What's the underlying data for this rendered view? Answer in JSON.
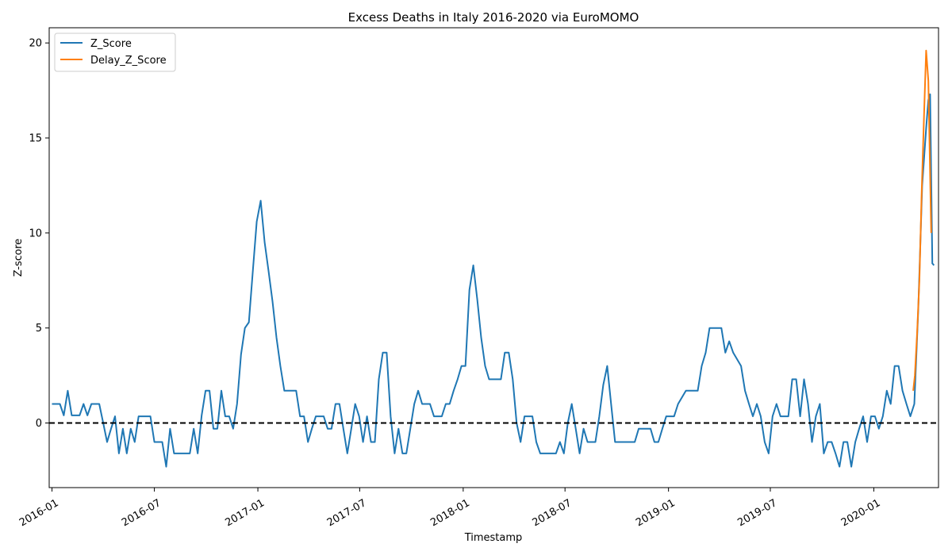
{
  "chart_data": {
    "type": "line",
    "title": "Excess Deaths in Italy 2016-2020 via EuroMOMO",
    "xlabel": "Timestamp",
    "ylabel": "Z-score",
    "xlim": [
      "2015-12-27",
      "2020-04-25"
    ],
    "ylim": [
      -3.4,
      20.8
    ],
    "x_ticks": [
      "2016-01",
      "2016-07",
      "2017-01",
      "2017-07",
      "2018-01",
      "2018-07",
      "2019-01",
      "2019-07",
      "2020-01"
    ],
    "y_ticks": [
      0,
      5,
      10,
      15,
      20
    ],
    "grid": false,
    "legend_position": "top-left",
    "reference_line": {
      "y": 0,
      "style": "dashed",
      "color": "#000000"
    },
    "series": [
      {
        "name": "Z_Score",
        "color": "#1f77b4",
        "points": [
          [
            "2016-01-01",
            1.0
          ],
          [
            "2016-01-15",
            1.0
          ],
          [
            "2016-01-22",
            0.4
          ],
          [
            "2016-01-29",
            1.7
          ],
          [
            "2016-02-05",
            0.4
          ],
          [
            "2016-02-19",
            0.4
          ],
          [
            "2016-02-26",
            1.0
          ],
          [
            "2016-03-04",
            0.4
          ],
          [
            "2016-03-11",
            1.0
          ],
          [
            "2016-03-25",
            1.0
          ],
          [
            "2016-04-01",
            0.0
          ],
          [
            "2016-04-08",
            -1.0
          ],
          [
            "2016-04-15",
            -0.3
          ],
          [
            "2016-04-22",
            0.35
          ],
          [
            "2016-04-29",
            -1.6
          ],
          [
            "2016-05-06",
            -0.3
          ],
          [
            "2016-05-13",
            -1.6
          ],
          [
            "2016-05-20",
            -0.3
          ],
          [
            "2016-05-27",
            -1.0
          ],
          [
            "2016-06-03",
            0.35
          ],
          [
            "2016-06-17",
            0.35
          ],
          [
            "2016-06-24",
            0.35
          ],
          [
            "2016-07-01",
            -1.0
          ],
          [
            "2016-07-15",
            -1.0
          ],
          [
            "2016-07-22",
            -2.3
          ],
          [
            "2016-07-29",
            -0.3
          ],
          [
            "2016-08-05",
            -1.6
          ],
          [
            "2016-08-26",
            -1.6
          ],
          [
            "2016-09-02",
            -1.6
          ],
          [
            "2016-09-09",
            -0.3
          ],
          [
            "2016-09-16",
            -1.6
          ],
          [
            "2016-09-23",
            0.4
          ],
          [
            "2016-09-30",
            1.7
          ],
          [
            "2016-10-07",
            1.7
          ],
          [
            "2016-10-14",
            -0.3
          ],
          [
            "2016-10-21",
            -0.3
          ],
          [
            "2016-10-28",
            1.7
          ],
          [
            "2016-11-04",
            0.35
          ],
          [
            "2016-11-11",
            0.35
          ],
          [
            "2016-11-18",
            -0.3
          ],
          [
            "2016-11-25",
            1.0
          ],
          [
            "2016-12-02",
            3.6
          ],
          [
            "2016-12-09",
            5.0
          ],
          [
            "2016-12-16",
            5.3
          ],
          [
            "2016-12-23",
            8.0
          ],
          [
            "2016-12-30",
            10.6
          ],
          [
            "2017-01-06",
            11.7
          ],
          [
            "2017-01-13",
            9.5
          ],
          [
            "2017-01-20",
            8.0
          ],
          [
            "2017-01-27",
            6.4
          ],
          [
            "2017-02-03",
            4.5
          ],
          [
            "2017-02-10",
            3.0
          ],
          [
            "2017-02-17",
            1.7
          ],
          [
            "2017-03-10",
            1.7
          ],
          [
            "2017-03-17",
            0.35
          ],
          [
            "2017-03-24",
            0.35
          ],
          [
            "2017-03-31",
            -1.0
          ],
          [
            "2017-04-07",
            -0.3
          ],
          [
            "2017-04-14",
            0.35
          ],
          [
            "2017-04-28",
            0.35
          ],
          [
            "2017-05-05",
            -0.3
          ],
          [
            "2017-05-12",
            -0.3
          ],
          [
            "2017-05-19",
            1.0
          ],
          [
            "2017-05-26",
            1.0
          ],
          [
            "2017-06-02",
            -0.3
          ],
          [
            "2017-06-09",
            -1.6
          ],
          [
            "2017-06-16",
            -0.3
          ],
          [
            "2017-06-23",
            1.0
          ],
          [
            "2017-06-30",
            0.35
          ],
          [
            "2017-07-07",
            -1.0
          ],
          [
            "2017-07-14",
            0.35
          ],
          [
            "2017-07-21",
            -1.0
          ],
          [
            "2017-07-28",
            -1.0
          ],
          [
            "2017-08-04",
            2.3
          ],
          [
            "2017-08-11",
            3.7
          ],
          [
            "2017-08-18",
            3.7
          ],
          [
            "2017-08-25",
            0.35
          ],
          [
            "2017-09-01",
            -1.6
          ],
          [
            "2017-09-08",
            -0.3
          ],
          [
            "2017-09-15",
            -1.6
          ],
          [
            "2017-09-22",
            -1.6
          ],
          [
            "2017-09-29",
            -0.3
          ],
          [
            "2017-10-06",
            1.0
          ],
          [
            "2017-10-13",
            1.7
          ],
          [
            "2017-10-20",
            1.0
          ],
          [
            "2017-11-03",
            1.0
          ],
          [
            "2017-11-10",
            0.35
          ],
          [
            "2017-11-24",
            0.35
          ],
          [
            "2017-12-01",
            1.0
          ],
          [
            "2017-12-08",
            1.0
          ],
          [
            "2017-12-15",
            1.7
          ],
          [
            "2017-12-22",
            2.3
          ],
          [
            "2017-12-29",
            3.0
          ],
          [
            "2018-01-05",
            3.0
          ],
          [
            "2018-01-12",
            7.0
          ],
          [
            "2018-01-19",
            8.3
          ],
          [
            "2018-01-26",
            6.5
          ],
          [
            "2018-02-02",
            4.5
          ],
          [
            "2018-02-09",
            3.0
          ],
          [
            "2018-02-16",
            2.3
          ],
          [
            "2018-03-09",
            2.3
          ],
          [
            "2018-03-16",
            3.7
          ],
          [
            "2018-03-23",
            3.7
          ],
          [
            "2018-03-30",
            2.3
          ],
          [
            "2018-04-06",
            0.0
          ],
          [
            "2018-04-13",
            -1.0
          ],
          [
            "2018-04-20",
            0.35
          ],
          [
            "2018-05-04",
            0.35
          ],
          [
            "2018-05-11",
            -1.0
          ],
          [
            "2018-05-18",
            -1.6
          ],
          [
            "2018-05-25",
            -1.6
          ],
          [
            "2018-06-15",
            -1.6
          ],
          [
            "2018-06-22",
            -1.0
          ],
          [
            "2018-06-29",
            -1.6
          ],
          [
            "2018-07-06",
            0.0
          ],
          [
            "2018-07-13",
            1.0
          ],
          [
            "2018-07-20",
            -0.3
          ],
          [
            "2018-07-27",
            -1.6
          ],
          [
            "2018-08-03",
            -0.3
          ],
          [
            "2018-08-10",
            -1.0
          ],
          [
            "2018-08-24",
            -1.0
          ],
          [
            "2018-08-31",
            0.35
          ],
          [
            "2018-09-07",
            2.0
          ],
          [
            "2018-09-14",
            3.0
          ],
          [
            "2018-09-21",
            1.0
          ],
          [
            "2018-09-28",
            -1.0
          ],
          [
            "2018-11-02",
            -1.0
          ],
          [
            "2018-11-09",
            -0.3
          ],
          [
            "2018-11-30",
            -0.3
          ],
          [
            "2018-12-07",
            -1.0
          ],
          [
            "2018-12-14",
            -1.0
          ],
          [
            "2018-12-21",
            -0.3
          ],
          [
            "2018-12-28",
            0.35
          ],
          [
            "2019-01-11",
            0.35
          ],
          [
            "2019-01-18",
            1.0
          ],
          [
            "2019-02-01",
            1.7
          ],
          [
            "2019-02-22",
            1.7
          ],
          [
            "2019-03-01",
            3.0
          ],
          [
            "2019-03-08",
            3.7
          ],
          [
            "2019-03-15",
            5.0
          ],
          [
            "2019-04-05",
            5.0
          ],
          [
            "2019-04-12",
            3.7
          ],
          [
            "2019-04-19",
            4.3
          ],
          [
            "2019-04-26",
            3.7
          ],
          [
            "2019-05-10",
            3.0
          ],
          [
            "2019-05-17",
            1.7
          ],
          [
            "2019-05-24",
            1.0
          ],
          [
            "2019-05-31",
            0.35
          ],
          [
            "2019-06-07",
            1.0
          ],
          [
            "2019-06-14",
            0.35
          ],
          [
            "2019-06-21",
            -1.0
          ],
          [
            "2019-06-28",
            -1.6
          ],
          [
            "2019-07-05",
            0.35
          ],
          [
            "2019-07-12",
            1.0
          ],
          [
            "2019-07-19",
            0.35
          ],
          [
            "2019-08-02",
            0.35
          ],
          [
            "2019-08-09",
            2.3
          ],
          [
            "2019-08-16",
            2.3
          ],
          [
            "2019-08-23",
            0.35
          ],
          [
            "2019-08-30",
            2.3
          ],
          [
            "2019-09-06",
            1.0
          ],
          [
            "2019-09-13",
            -1.0
          ],
          [
            "2019-09-20",
            0.35
          ],
          [
            "2019-09-27",
            1.0
          ],
          [
            "2019-10-04",
            -1.6
          ],
          [
            "2019-10-11",
            -1.0
          ],
          [
            "2019-10-18",
            -1.0
          ],
          [
            "2019-10-25",
            -1.6
          ],
          [
            "2019-11-01",
            -2.3
          ],
          [
            "2019-11-08",
            -1.0
          ],
          [
            "2019-11-15",
            -1.0
          ],
          [
            "2019-11-22",
            -2.3
          ],
          [
            "2019-11-29",
            -1.0
          ],
          [
            "2019-12-06",
            -0.3
          ],
          [
            "2019-12-13",
            0.35
          ],
          [
            "2019-12-20",
            -1.0
          ],
          [
            "2019-12-27",
            0.35
          ],
          [
            "2020-01-03",
            0.35
          ],
          [
            "2020-01-10",
            -0.3
          ],
          [
            "2020-01-17",
            0.35
          ],
          [
            "2020-01-24",
            1.7
          ],
          [
            "2020-01-31",
            1.0
          ],
          [
            "2020-02-07",
            3.0
          ],
          [
            "2020-02-14",
            3.0
          ],
          [
            "2020-02-21",
            1.7
          ],
          [
            "2020-02-28",
            1.0
          ],
          [
            "2020-03-06",
            0.35
          ],
          [
            "2020-03-13",
            1.0
          ],
          [
            "2020-03-20",
            6.0
          ],
          [
            "2020-03-27",
            12.5
          ],
          [
            "2020-04-03",
            15.5
          ],
          [
            "2020-04-07",
            17.0
          ],
          [
            "2020-04-10",
            17.3
          ],
          [
            "2020-04-14",
            8.4
          ],
          [
            "2020-04-17",
            8.3
          ]
        ]
      },
      {
        "name": "Delay_Z_Score",
        "color": "#ff7f0e",
        "points": [
          [
            "2020-03-11",
            1.7
          ],
          [
            "2020-03-14",
            2.5
          ],
          [
            "2020-03-18",
            4.8
          ],
          [
            "2020-03-22",
            7.5
          ],
          [
            "2020-03-26",
            12.0
          ],
          [
            "2020-03-30",
            16.0
          ],
          [
            "2020-04-03",
            19.6
          ],
          [
            "2020-04-07",
            18.0
          ],
          [
            "2020-04-12",
            10.0
          ]
        ]
      }
    ]
  }
}
